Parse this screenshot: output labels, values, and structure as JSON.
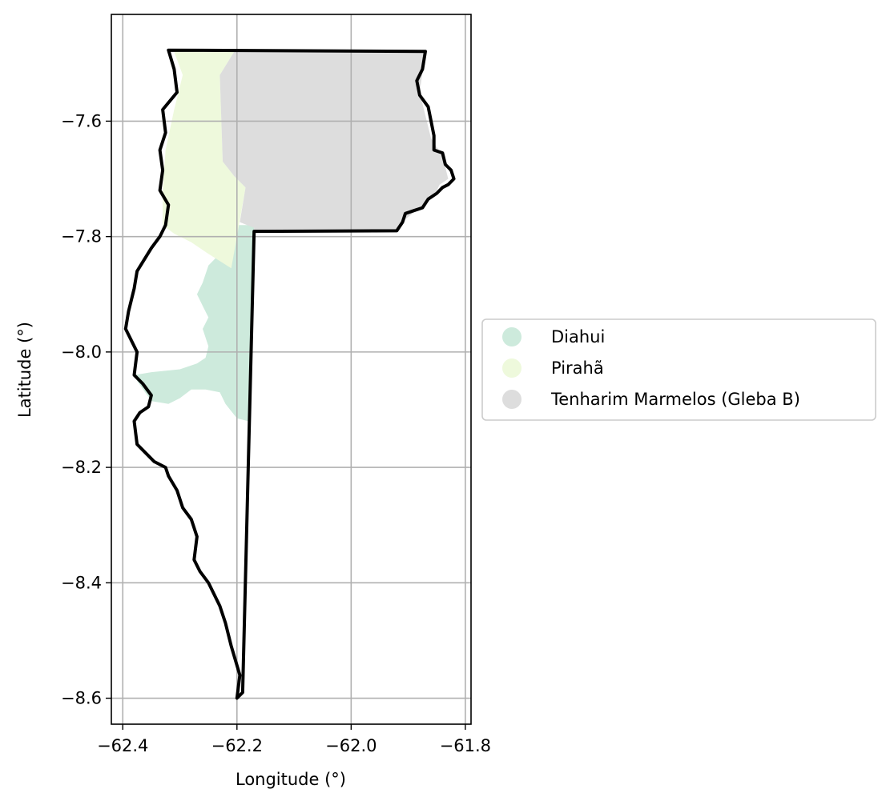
{
  "chart_data": {
    "type": "map",
    "xlabel": "Longitude (°)",
    "ylabel": "Latitude (°)",
    "xlim": [
      -62.42,
      -61.79
    ],
    "ylim": [
      -8.645,
      -7.415
    ],
    "xticks": [
      -62.4,
      -62.2,
      -62.0,
      -61.8
    ],
    "yticks": [
      -8.6,
      -8.4,
      -8.2,
      -8.0,
      -7.8,
      -7.6
    ],
    "xtick_labels": [
      "−62.4",
      "−62.2",
      "−62.0",
      "−61.8"
    ],
    "ytick_labels": [
      "−8.6",
      "−8.4",
      "−8.2",
      "−8.0",
      "−7.8",
      "−7.6"
    ],
    "grid": true,
    "legend_position": "center-left outside right of axes",
    "regions": [
      {
        "name": "Diahui",
        "color": "#cdeadc",
        "polygon": [
          [
            -62.23,
            -7.83
          ],
          [
            -62.22,
            -7.8
          ],
          [
            -62.205,
            -7.78
          ],
          [
            -62.17,
            -7.78
          ],
          [
            -62.17,
            -7.81
          ],
          [
            -62.175,
            -7.95
          ],
          [
            -62.18,
            -8.12
          ],
          [
            -62.2,
            -8.115
          ],
          [
            -62.22,
            -8.09
          ],
          [
            -62.23,
            -8.07
          ],
          [
            -62.255,
            -8.065
          ],
          [
            -62.28,
            -8.065
          ],
          [
            -62.3,
            -8.08
          ],
          [
            -62.32,
            -8.09
          ],
          [
            -62.35,
            -8.085
          ],
          [
            -62.375,
            -8.05
          ],
          [
            -62.38,
            -8.04
          ],
          [
            -62.35,
            -8.035
          ],
          [
            -62.3,
            -8.03
          ],
          [
            -62.27,
            -8.02
          ],
          [
            -62.255,
            -8.01
          ],
          [
            -62.25,
            -7.99
          ],
          [
            -62.26,
            -7.96
          ],
          [
            -62.25,
            -7.94
          ],
          [
            -62.26,
            -7.92
          ],
          [
            -62.27,
            -7.9
          ],
          [
            -62.26,
            -7.88
          ],
          [
            -62.25,
            -7.85
          ],
          [
            -62.23,
            -7.83
          ]
        ]
      },
      {
        "name": "Pirahã",
        "color": "#eef9dc",
        "polygon": [
          [
            -62.31,
            -7.48
          ],
          [
            -62.205,
            -7.48
          ],
          [
            -62.23,
            -7.52
          ],
          [
            -62.225,
            -7.67
          ],
          [
            -62.205,
            -7.695
          ],
          [
            -62.185,
            -7.715
          ],
          [
            -62.2,
            -7.8
          ],
          [
            -62.21,
            -7.855
          ],
          [
            -62.25,
            -7.83
          ],
          [
            -62.28,
            -7.81
          ],
          [
            -62.31,
            -7.795
          ],
          [
            -62.33,
            -7.78
          ],
          [
            -62.33,
            -7.72
          ],
          [
            -62.325,
            -7.65
          ],
          [
            -62.31,
            -7.58
          ],
          [
            -62.295,
            -7.52
          ],
          [
            -62.31,
            -7.48
          ]
        ]
      },
      {
        "name": "Tenharim Marmelos (Gleba B)",
        "color": "#dddddd",
        "polygon": [
          [
            -62.205,
            -7.48
          ],
          [
            -61.87,
            -7.48
          ],
          [
            -61.88,
            -7.55
          ],
          [
            -61.86,
            -7.63
          ],
          [
            -61.84,
            -7.66
          ],
          [
            -61.83,
            -7.7
          ],
          [
            -61.845,
            -7.71
          ],
          [
            -61.855,
            -7.73
          ],
          [
            -61.88,
            -7.75
          ],
          [
            -61.905,
            -7.77
          ],
          [
            -61.92,
            -7.79
          ],
          [
            -62.17,
            -7.79
          ],
          [
            -62.17,
            -7.785
          ],
          [
            -62.195,
            -7.775
          ],
          [
            -62.185,
            -7.715
          ],
          [
            -62.205,
            -7.695
          ],
          [
            -62.225,
            -7.67
          ],
          [
            -62.23,
            -7.52
          ],
          [
            -62.205,
            -7.48
          ]
        ]
      }
    ],
    "outline": {
      "color": "#000000",
      "polygon": [
        [
          -62.32,
          -7.477
        ],
        [
          -61.87,
          -7.479
        ],
        [
          -61.875,
          -7.51
        ],
        [
          -61.885,
          -7.53
        ],
        [
          -61.88,
          -7.555
        ],
        [
          -61.865,
          -7.575
        ],
        [
          -61.86,
          -7.6
        ],
        [
          -61.855,
          -7.625
        ],
        [
          -61.855,
          -7.65
        ],
        [
          -61.84,
          -7.655
        ],
        [
          -61.835,
          -7.675
        ],
        [
          -61.825,
          -7.685
        ],
        [
          -61.82,
          -7.7
        ],
        [
          -61.83,
          -7.71
        ],
        [
          -61.84,
          -7.715
        ],
        [
          -61.85,
          -7.725
        ],
        [
          -61.865,
          -7.735
        ],
        [
          -61.875,
          -7.75
        ],
        [
          -61.89,
          -7.755
        ],
        [
          -61.905,
          -7.76
        ],
        [
          -61.91,
          -7.775
        ],
        [
          -61.92,
          -7.79
        ],
        [
          -62.17,
          -7.791
        ],
        [
          -62.19,
          -8.59
        ],
        [
          -62.2,
          -8.6
        ],
        [
          -62.195,
          -8.56
        ],
        [
          -62.21,
          -8.51
        ],
        [
          -62.22,
          -8.47
        ],
        [
          -62.23,
          -8.44
        ],
        [
          -62.25,
          -8.4
        ],
        [
          -62.265,
          -8.38
        ],
        [
          -62.275,
          -8.36
        ],
        [
          -62.27,
          -8.32
        ],
        [
          -62.28,
          -8.29
        ],
        [
          -62.295,
          -8.27
        ],
        [
          -62.305,
          -8.24
        ],
        [
          -62.32,
          -8.215
        ],
        [
          -62.325,
          -8.2
        ],
        [
          -62.345,
          -8.19
        ],
        [
          -62.375,
          -8.16
        ],
        [
          -62.38,
          -8.12
        ],
        [
          -62.37,
          -8.105
        ],
        [
          -62.355,
          -8.095
        ],
        [
          -62.35,
          -8.075
        ],
        [
          -62.365,
          -8.055
        ],
        [
          -62.38,
          -8.04
        ],
        [
          -62.375,
          -8.0
        ],
        [
          -62.395,
          -7.96
        ],
        [
          -62.39,
          -7.93
        ],
        [
          -62.38,
          -7.89
        ],
        [
          -62.375,
          -7.86
        ],
        [
          -62.35,
          -7.82
        ],
        [
          -62.335,
          -7.8
        ],
        [
          -62.325,
          -7.78
        ],
        [
          -62.32,
          -7.745
        ],
        [
          -62.335,
          -7.72
        ],
        [
          -62.33,
          -7.685
        ],
        [
          -62.335,
          -7.65
        ],
        [
          -62.325,
          -7.62
        ],
        [
          -62.33,
          -7.58
        ],
        [
          -62.305,
          -7.55
        ],
        [
          -62.31,
          -7.51
        ],
        [
          -62.32,
          -7.477
        ]
      ]
    }
  }
}
